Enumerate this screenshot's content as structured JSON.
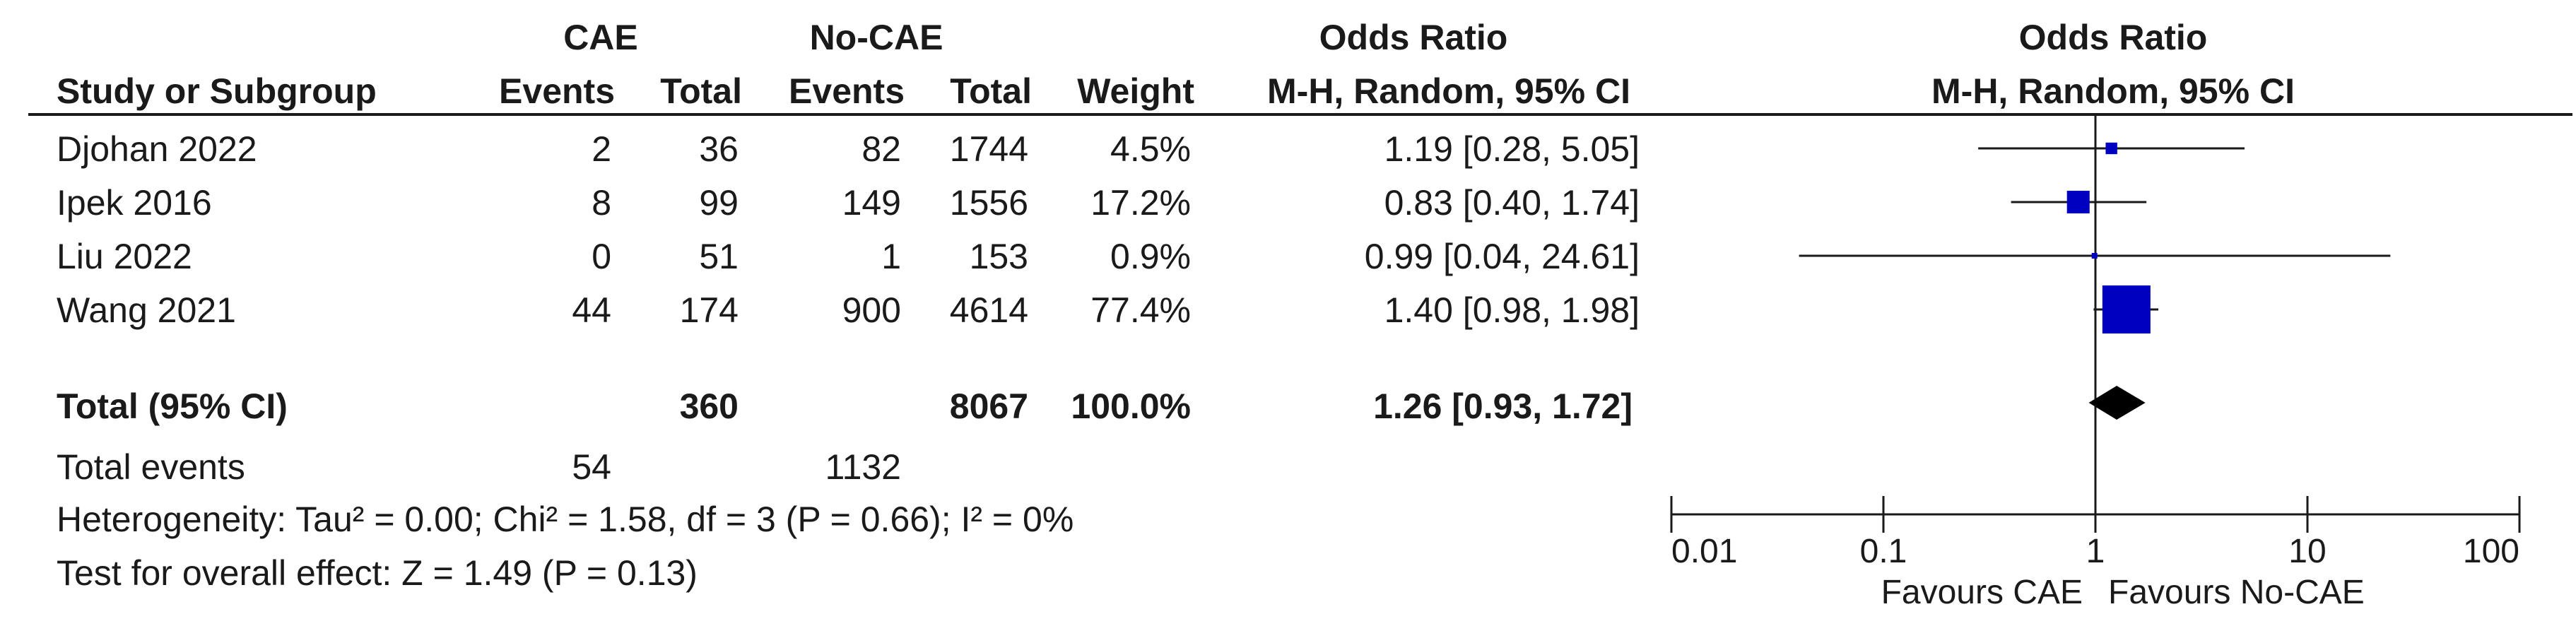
{
  "header": {
    "cae_group": "CAE",
    "nocae_group": "No-CAE",
    "or_title": "Odds Ratio",
    "or_subtitle": "M-H, Random, 95% CI",
    "plot_title": "Odds Ratio",
    "plot_subtitle": "M-H, Random, 95% CI",
    "study_col": "Study or Subgroup",
    "events_col": "Events",
    "total_col": "Total",
    "events_col2": "Events",
    "total_col2": "Total",
    "weight_col": "Weight"
  },
  "studies": [
    {
      "name": "Djohan 2022",
      "cae_events": "2",
      "cae_total": "36",
      "nocae_events": "82",
      "nocae_total": "1744",
      "weight": "4.5%",
      "ci_text": "1.19 [0.28, 5.05]"
    },
    {
      "name": "Ipek 2016",
      "cae_events": "8",
      "cae_total": "99",
      "nocae_events": "149",
      "nocae_total": "1556",
      "weight": "17.2%",
      "ci_text": "0.83 [0.40, 1.74]"
    },
    {
      "name": "Liu 2022",
      "cae_events": "0",
      "cae_total": "51",
      "nocae_events": "1",
      "nocae_total": "153",
      "weight": "0.9%",
      "ci_text": "0.99 [0.04, 24.61]"
    },
    {
      "name": "Wang 2021",
      "cae_events": "44",
      "cae_total": "174",
      "nocae_events": "900",
      "nocae_total": "4614",
      "weight": "77.4%",
      "ci_text": "1.40 [0.98, 1.98]"
    }
  ],
  "total": {
    "label": "Total (95% CI)",
    "cae_total": "360",
    "nocae_total": "8067",
    "weight": "100.0%",
    "ci_text": "1.26 [0.93, 1.72]"
  },
  "events": {
    "label": "Total events",
    "cae": "54",
    "nocae": "1132"
  },
  "heterogeneity": "Heterogeneity: Tau² = 0.00; Chi² = 1.58, df = 3 (P = 0.66); I² = 0%",
  "overall_effect": "Test for overall effect: Z = 1.49 (P = 0.13)",
  "colors": {
    "marker": "#0000c0",
    "diamond": "#000000",
    "line": "#1a1a1a"
  },
  "chart_data": {
    "type": "forest",
    "scale": "log",
    "xlim": [
      0.01,
      100
    ],
    "ticks": [
      0.01,
      0.1,
      1,
      10,
      100
    ],
    "tick_labels": [
      "0.01",
      "0.1",
      "1",
      "10",
      "100"
    ],
    "favours_left": "Favours CAE",
    "favours_right": "Favours No-CAE",
    "series": [
      {
        "study": "Djohan 2022",
        "or": 1.19,
        "lo": 0.28,
        "hi": 5.05,
        "weight": 4.5
      },
      {
        "study": "Ipek 2016",
        "or": 0.83,
        "lo": 0.4,
        "hi": 1.74,
        "weight": 17.2
      },
      {
        "study": "Liu 2022",
        "or": 0.99,
        "lo": 0.04,
        "hi": 24.61,
        "weight": 0.9
      },
      {
        "study": "Wang 2021",
        "or": 1.4,
        "lo": 0.98,
        "hi": 1.98,
        "weight": 77.4
      }
    ],
    "pooled": {
      "or": 1.26,
      "lo": 0.93,
      "hi": 1.72
    }
  }
}
